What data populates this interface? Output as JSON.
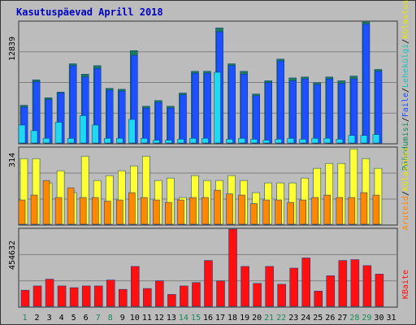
{
  "chart_data": {
    "type": "bar",
    "title": "Kasutuspäevad Aprill 2018",
    "days": [
      "1",
      "2",
      "3",
      "4",
      "5",
      "6",
      "7",
      "8",
      "9",
      "10",
      "11",
      "12",
      "13",
      "14",
      "15",
      "16",
      "17",
      "18",
      "19",
      "20",
      "21",
      "22",
      "23",
      "24",
      "25",
      "26",
      "27",
      "28",
      "29",
      "30",
      "31"
    ],
    "weekend_days": [
      "1",
      "7",
      "8",
      "14",
      "15",
      "21",
      "22",
      "28",
      "29"
    ],
    "panels": [
      {
        "id": "hits-files-pages",
        "ymax_label": "12839",
        "ylim": [
          0,
          12839
        ],
        "series": [
          {
            "name": "Külastusi",
            "color": "#1e7a5a",
            "values": [
              4000,
              6700,
              4800,
              5400,
              8400,
              7300,
              8200,
              5800,
              5700,
              9800,
              3900,
              4500,
              3900,
              5300,
              7600,
              7600,
              12200,
              8400,
              7600,
              5200,
              6600,
              8900,
              6900,
              7000,
              6400,
              7000,
              6600,
              7100,
              12839,
              7800,
              0
            ]
          },
          {
            "name": "Lehekülgi",
            "color": "#1e50ff",
            "values": [
              3800,
              6500,
              4600,
              5300,
              8200,
              7000,
              7900,
              5600,
              5500,
              9300,
              3700,
              4300,
              3700,
              5100,
              7400,
              7400,
              11800,
              8200,
              7300,
              5000,
              6400,
              8700,
              6600,
              6800,
              6200,
              6800,
              6300,
              6800,
              12600,
              7600,
              0
            ]
          },
          {
            "name": "Faile",
            "color": "#20d8f0",
            "values": [
              1900,
              1300,
              500,
              2200,
              500,
              2900,
              1900,
              500,
              500,
              2500,
              500,
              300,
              300,
              400,
              500,
              500,
              7500,
              400,
              500,
              400,
              300,
              400,
              500,
              400,
              500,
              500,
              400,
              800,
              800,
              900,
              0
            ]
          },
          {
            "name": "Pöördumisi",
            "color": "#00a0a0",
            "values": [
              1900,
              1300,
              500,
              2200,
              500,
              2900,
              1900,
              500,
              500,
              2500,
              500,
              300,
              300,
              400,
              500,
              500,
              7500,
              400,
              500,
              400,
              300,
              400,
              500,
              400,
              500,
              500,
              400,
              800,
              800,
              900,
              0
            ]
          }
        ]
      },
      {
        "id": "visits-sites",
        "ymax_label": "314",
        "ylim": [
          0,
          314
        ],
        "series": [
          {
            "name": "Külastusi",
            "color": "#ffff33",
            "values": [
              270,
              270,
              170,
              220,
              130,
              280,
              180,
              200,
              220,
              240,
              280,
              180,
              190,
              110,
              200,
              180,
              180,
              200,
              180,
              130,
              170,
              170,
              170,
              190,
              230,
              250,
              250,
              310,
              270,
              230,
              0
            ]
          },
          {
            "name": "Aruteid",
            "color": "#ff8800",
            "values": [
              100,
              120,
              180,
              110,
              150,
              110,
              110,
              95,
              100,
              130,
              110,
              100,
              90,
              100,
              110,
              110,
              140,
              125,
              120,
              85,
              100,
              100,
              90,
              100,
              110,
              120,
              110,
              110,
              130,
              120,
              0
            ]
          }
        ]
      },
      {
        "id": "kbytes",
        "ymax_label": "454632",
        "ylim": [
          0,
          454632
        ],
        "series": [
          {
            "name": "KBaite",
            "color": "#ff1010",
            "values": [
              95000,
              120000,
              160000,
              120000,
              110000,
              120000,
              120000,
              155000,
              100000,
              235000,
              105000,
              150000,
              70000,
              120000,
              140000,
              270000,
              150000,
              454632,
              235000,
              135000,
              235000,
              130000,
              225000,
              285000,
              90000,
              180000,
              270000,
              275000,
              240000,
              190000,
              0
            ]
          }
        ]
      }
    ],
    "right_labels": {
      "top": [
        "Pöördumisi",
        "/",
        "Faile",
        "/",
        "Lehekülgi",
        "/",
        "Külastusi"
      ],
      "middle": [
        "Aruteid",
        "/",
        "Külastusi"
      ],
      "bottom": [
        "KBaite"
      ]
    }
  },
  "colors": {
    "background": "#bcbcbc",
    "plot_bg": "#bcbcbc",
    "title": "#0000c0",
    "weekend_tick": "#1a8a5a",
    "weekday_tick": "#000000",
    "gridline": "#808080",
    "label_green": "#1a8a5a",
    "label_cyan": "#22bfc0",
    "label_blue": "#1e50ff",
    "label_dark_green": "#1e7a5a",
    "label_orange": "#ff8800",
    "label_yellow": "#e8e800",
    "label_red": "#ff1010"
  }
}
